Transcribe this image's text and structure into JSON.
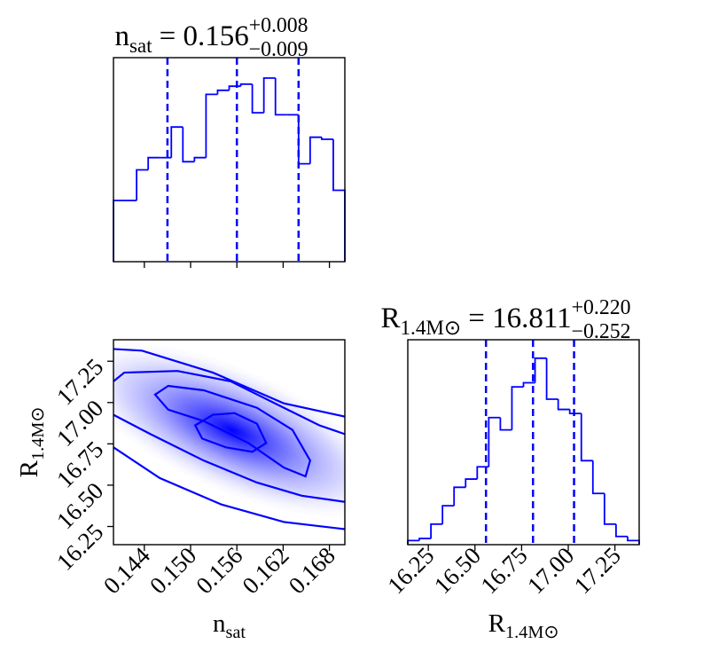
{
  "chart_data": [
    {
      "type": "histogram",
      "title": {
        "symbol": "n",
        "symbol_sub": "sat",
        "text": "= 0.156",
        "upper": "+0.008",
        "lower": "−0.009"
      },
      "bins": [
        0.14,
        0.1415,
        0.143,
        0.1445,
        0.146,
        0.1475,
        0.149,
        0.1505,
        0.152,
        0.1535,
        0.155,
        0.1565,
        0.158,
        0.1595,
        0.161,
        0.1625,
        0.164,
        0.1655,
        0.167,
        0.1685,
        0.17
      ],
      "values": [
        0.3,
        0.3,
        0.45,
        0.51,
        0.51,
        0.66,
        0.49,
        0.51,
        0.82,
        0.84,
        0.86,
        0.87,
        0.73,
        0.9,
        0.72,
        0.72,
        0.48,
        0.61,
        0.6,
        0.35
      ],
      "color": "#0000ff",
      "xlim": [
        0.14,
        0.17
      ],
      "ylim": [
        0,
        1
      ],
      "xticks": [
        0.144,
        {
          "value": 0.15,
          "label": "0.150"
        },
        0.156,
        0.162,
        0.168
      ],
      "xtick_labels": false,
      "quantiles": [
        0.147,
        0.156,
        0.164
      ]
    },
    {
      "type": "hist2d",
      "color": "#0000ff",
      "xlim": [
        0.14,
        0.17
      ],
      "ylim": [
        16.14,
        17.38
      ],
      "xticks": [
        0.144,
        {
          "value": 0.15,
          "label": "0.150"
        },
        0.156,
        0.162,
        0.168
      ],
      "yticks": [
        16.25,
        {
          "value": 16.5,
          "label": "16.50"
        },
        16.75,
        {
          "value": 17.0,
          "label": "17.00"
        },
        17.25
      ],
      "xlabel": {
        "symbol": "n",
        "sub": "sat"
      },
      "ylabel": {
        "symbol": "R",
        "sub": "1.4M⊙"
      },
      "contours": [
        {
          "closed": true,
          "x": [
            0.1506,
            0.1529,
            0.1557,
            0.1586,
            0.1598,
            0.158,
            0.1546,
            0.1515
          ],
          "y": [
            16.862,
            16.926,
            16.936,
            16.872,
            16.755,
            16.702,
            16.729,
            16.782
          ]
        },
        {
          "closed": true,
          "x": [
            0.1454,
            0.1471,
            0.1517,
            0.1586,
            0.1632,
            0.1655,
            0.1649,
            0.1621,
            0.1575,
            0.1517,
            0.1471
          ],
          "y": [
            17.048,
            17.101,
            17.074,
            16.968,
            16.835,
            16.649,
            16.553,
            16.606,
            16.755,
            16.888,
            16.957
          ]
        },
        {
          "closed": false,
          "x": [
            0.14,
            0.1414,
            0.1483,
            0.1552,
            0.1621,
            0.1667,
            0.17
          ],
          "y": [
            17.128,
            17.181,
            17.191,
            17.128,
            16.968,
            16.862,
            16.809
          ]
        },
        {
          "closed": false,
          "x": [
            0.14,
            0.1448,
            0.1517,
            0.1586,
            0.1644,
            0.17
          ],
          "y": [
            16.926,
            16.809,
            16.649,
            16.516,
            16.436,
            16.399
          ]
        },
        {
          "closed": false,
          "x": [
            0.14,
            0.1437,
            0.1529,
            0.1621,
            0.17
          ],
          "y": [
            17.324,
            17.314,
            17.181,
            16.995,
            16.915
          ]
        },
        {
          "closed": false,
          "x": [
            0.14,
            0.146,
            0.154,
            0.1621,
            0.17
          ],
          "y": [
            16.729,
            16.543,
            16.383,
            16.277,
            16.234
          ]
        }
      ]
    },
    {
      "type": "histogram",
      "title": {
        "symbol": "R",
        "symbol_sub": "1.4M⊙",
        "text": "= 16.811",
        "upper": "+0.220",
        "lower": "−0.252"
      },
      "bins": [
        16.14,
        16.202,
        16.264,
        16.326,
        16.388,
        16.45,
        16.512,
        16.574,
        16.636,
        16.698,
        16.76,
        16.822,
        16.884,
        16.946,
        17.008,
        17.07,
        17.132,
        17.194,
        17.256,
        17.318,
        17.38
      ],
      "values": [
        0.02,
        0.03,
        0.1,
        0.19,
        0.28,
        0.32,
        0.38,
        0.62,
        0.56,
        0.77,
        0.79,
        0.91,
        0.71,
        0.66,
        0.64,
        0.41,
        0.25,
        0.1,
        0.04,
        0.02
      ],
      "color": "#0000ff",
      "xlim": [
        16.14,
        17.38
      ],
      "ylim": [
        0,
        1
      ],
      "xticks": [
        16.25,
        {
          "value": 16.5,
          "label": "16.50"
        },
        16.75,
        {
          "value": 17.0,
          "label": "17.00"
        },
        17.25
      ],
      "xtick_labels": true,
      "xlabel": {
        "symbol": "R",
        "sub": "1.4M⊙"
      },
      "quantiles": [
        16.559,
        16.811,
        17.031
      ]
    }
  ]
}
